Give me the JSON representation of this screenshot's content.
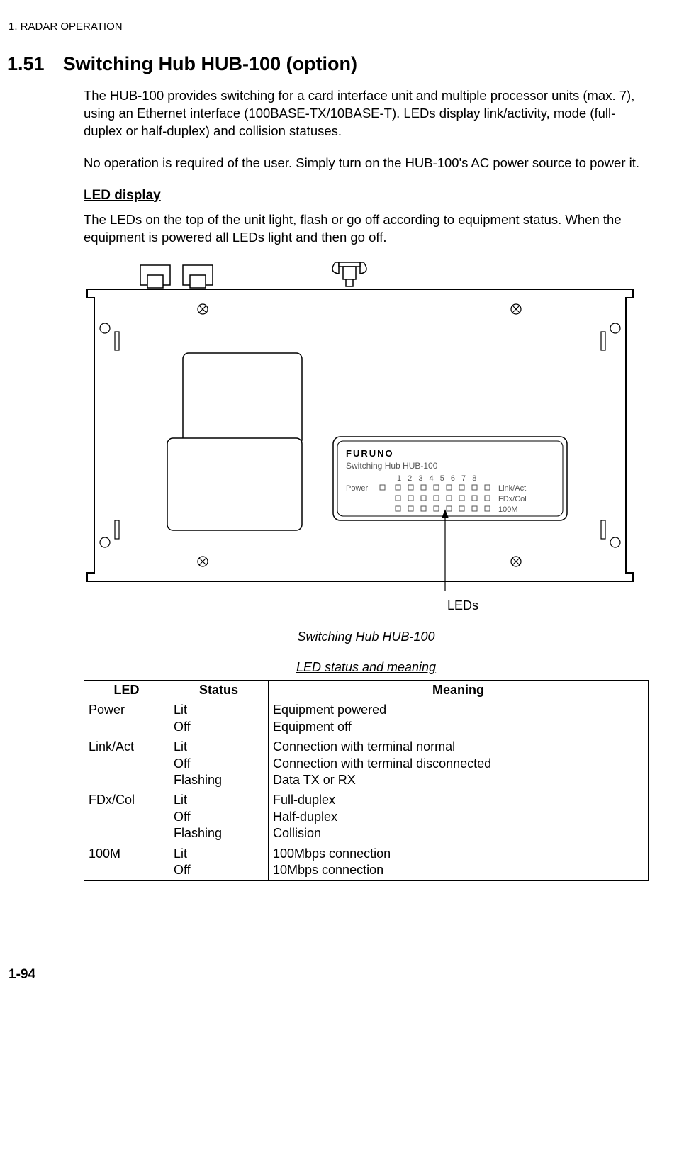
{
  "header": "1. RADAR OPERATION",
  "section_number": "1.51",
  "section_title": "Switching Hub HUB-100 (option)",
  "p1": "The HUB-100 provides switching for a card interface unit and multiple processor units (max. 7), using an Ethernet interface (100BASE-TX/10BASE-T). LEDs display link/activity, mode (full-duplex or half-duplex) and collision statuses.",
  "p2": "No operation is required of the user. Simply turn on the HUB-100's AC power source to power it.",
  "h2": "LED display",
  "p3": "The LEDs on the top of the unit light, flash or go off according to equipment status. When the equipment is powered all LEDs light and then go off.",
  "diagram": {
    "brand": "FURUNO",
    "model_line": "Switching Hub   HUB-100",
    "power_label": "Power",
    "numbers": "1  2  3  4  5  6  7  8",
    "row1_label": "Link/Act",
    "row2_label": "FDx/Col",
    "row3_label": "100M",
    "led_callout": "LEDs"
  },
  "fig_caption": "Switching Hub HUB-100",
  "table_caption": "LED status and meaning",
  "table": {
    "headers": [
      "LED",
      "Status",
      "Meaning"
    ],
    "rows": [
      {
        "led": "Power",
        "status": "Lit\nOff",
        "meaning": "Equipment powered\nEquipment off"
      },
      {
        "led": "Link/Act",
        "status": "Lit\nOff\nFlashing",
        "meaning": "Connection with terminal normal\nConnection with terminal disconnected\nData TX or RX"
      },
      {
        "led": "FDx/Col",
        "status": "Lit\nOff\nFlashing",
        "meaning": "Full-duplex\nHalf-duplex\nCollision"
      },
      {
        "led": "100M",
        "status": "Lit\nOff",
        "meaning": "100Mbps connection\n10Mbps connection"
      }
    ]
  },
  "page_number": "1-94"
}
